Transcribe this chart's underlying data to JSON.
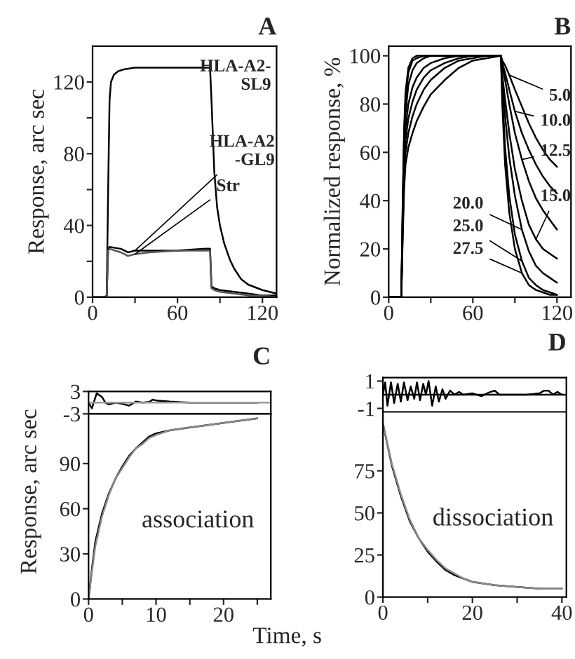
{
  "chart_data": [
    {
      "type": "line",
      "title": "A",
      "ylabel": "Response, arc sec",
      "xlim": [
        0,
        130
      ],
      "xticks": [
        0,
        {
          "value": 30,
          "label": null
        },
        60,
        {
          "value": 90,
          "label": null
        },
        120
      ],
      "ylim": [
        0,
        140
      ],
      "yticks": [
        0,
        {
          "value": 20,
          "label": null
        },
        40,
        {
          "value": 60,
          "label": null
        },
        80,
        {
          "value": 100,
          "label": null
        },
        120
      ],
      "grid": false,
      "legend": false,
      "series": [
        {
          "color": "#000000",
          "x": [
            0,
            9,
            10,
            11,
            12,
            13,
            15,
            18,
            22,
            30,
            50,
            70,
            83,
            84,
            86,
            88,
            90,
            93,
            97,
            100,
            105,
            110,
            120,
            130
          ],
          "values": [
            0,
            0,
            1,
            60,
            110,
            120,
            124,
            126,
            127,
            128,
            128,
            128,
            128,
            110,
            70,
            50,
            40,
            30,
            21,
            16,
            10,
            7,
            4,
            2
          ]
        },
        {
          "color": "#000000",
          "x": [
            0,
            9,
            10,
            11,
            12,
            20,
            25,
            30,
            40,
            60,
            80,
            83,
            84,
            86,
            90,
            100,
            110,
            120,
            130
          ],
          "values": [
            0,
            0,
            1,
            27,
            28,
            27,
            25,
            26,
            26,
            26,
            27,
            27,
            6,
            5,
            4,
            3,
            2,
            1,
            1
          ]
        },
        {
          "color": "#555555",
          "x": [
            0,
            9,
            10,
            11,
            12,
            20,
            25,
            30,
            40,
            60,
            80,
            83,
            84,
            86,
            90,
            100,
            110,
            120,
            130
          ],
          "values": [
            0,
            0,
            1,
            26,
            27,
            25,
            23,
            24,
            25,
            26,
            26,
            26,
            5,
            4,
            3,
            2,
            1,
            1,
            0
          ]
        }
      ],
      "annotations": [
        {
          "text": "HLA-A2-\nSL9",
          "x": 84,
          "y": 110
        },
        {
          "text": "HLA-A2\n-GL9",
          "x": 30,
          "y": 26
        },
        {
          "text": "Str",
          "x": 30,
          "y": 24
        }
      ]
    },
    {
      "type": "line",
      "title": "B",
      "ylabel": "Normalized response, %",
      "xlim": [
        0,
        130
      ],
      "xticks": [
        0,
        {
          "value": 30,
          "label": null
        },
        60,
        {
          "value": 90,
          "label": null
        },
        120
      ],
      "ylim": [
        0,
        104
      ],
      "yticks": [
        0,
        20,
        40,
        60,
        80,
        100
      ],
      "grid": false,
      "legend": false,
      "x": [
        0,
        9,
        10,
        11,
        12,
        14,
        17,
        20,
        25,
        30,
        40,
        50,
        60,
        70,
        80,
        81,
        83,
        86,
        90,
        95,
        100,
        105,
        110,
        115,
        120
      ],
      "series": [
        {
          "color": "#000000",
          "values": [
            0,
            0,
            25,
            45,
            55,
            62,
            68,
            73,
            79,
            84,
            90,
            95,
            98,
            99,
            100,
            98,
            96,
            92,
            86,
            79,
            72,
            66,
            61,
            57,
            54
          ]
        },
        {
          "color": "#000000",
          "values": [
            0,
            0,
            28,
            50,
            60,
            68,
            75,
            80,
            86,
            90,
            95,
            98,
            99,
            100,
            100,
            97,
            93,
            86,
            77,
            68,
            61,
            55,
            50,
            46,
            43
          ]
        },
        {
          "color": "#000000",
          "values": [
            0,
            0,
            30,
            55,
            65,
            74,
            81,
            86,
            91,
            94,
            97,
            99,
            100,
            100,
            100,
            96,
            90,
            80,
            68,
            57,
            48,
            41,
            36,
            32,
            28
          ]
        },
        {
          "color": "#000000",
          "values": [
            0,
            0,
            33,
            58,
            70,
            80,
            87,
            91,
            95,
            97,
            99,
            100,
            100,
            100,
            100,
            92,
            82,
            68,
            53,
            40,
            30,
            24,
            20,
            18,
            16
          ]
        },
        {
          "color": "#000000",
          "values": [
            0,
            0,
            35,
            62,
            76,
            88,
            94,
            97,
            99,
            100,
            100,
            100,
            100,
            100,
            100,
            90,
            75,
            58,
            42,
            28,
            19,
            13,
            10,
            8,
            6
          ]
        },
        {
          "color": "#000000",
          "values": [
            0,
            0,
            38,
            67,
            82,
            93,
            98,
            99,
            100,
            100,
            100,
            100,
            100,
            100,
            100,
            85,
            62,
            42,
            26,
            15,
            8,
            5,
            3,
            2,
            1
          ]
        },
        {
          "color": "#000000",
          "values": [
            0,
            0,
            40,
            70,
            85,
            95,
            99,
            100,
            100,
            100,
            100,
            100,
            100,
            100,
            100,
            80,
            55,
            35,
            20,
            10,
            5,
            3,
            2,
            1,
            1
          ]
        }
      ],
      "annotations": [
        {
          "text": "5.0",
          "x": 86,
          "y": 92
        },
        {
          "text": "10.0",
          "x": 90,
          "y": 77
        },
        {
          "text": "12.5",
          "x": 95,
          "y": 57
        },
        {
          "text": "15.0",
          "x": 105,
          "y": 24
        },
        {
          "text": "20.0",
          "x": 95,
          "y": 28
        },
        {
          "text": "25.0",
          "x": 95,
          "y": 15
        },
        {
          "text": "27.5",
          "x": 95,
          "y": 10
        }
      ]
    },
    {
      "type": "line",
      "title": "C",
      "xlim": [
        0,
        27
      ],
      "ylim": [
        -3,
        3
      ],
      "yticks": [
        -3,
        3
      ],
      "tick_labels": "y",
      "grid": false,
      "legend": false,
      "ref_lines": [
        {
          "axis": "y",
          "value": 0,
          "color": "#999999"
        }
      ],
      "series": [
        {
          "color": "#000000",
          "x": [
            0,
            0.5,
            1.2,
            2,
            2.5,
            3,
            4,
            5,
            6,
            7,
            8,
            9,
            9.5,
            10,
            12,
            15,
            20,
            25
          ],
          "values": [
            0,
            -1.5,
            2.5,
            1.5,
            0,
            -0.5,
            0,
            -0.3,
            -0.8,
            0.3,
            0,
            0.2,
            0.8,
            0.6,
            0.3,
            0,
            0,
            0
          ]
        }
      ]
    },
    {
      "type": "line",
      "xlabel": "Time, s",
      "ylabel": "Response, arc sec",
      "xlim": [
        0,
        27
      ],
      "xticks": [
        0,
        {
          "value": 5,
          "label": null
        },
        10,
        {
          "value": 15,
          "label": null
        },
        20,
        {
          "value": 25,
          "label": null
        }
      ],
      "ylim": [
        0,
        123
      ],
      "yticks": [
        0,
        30,
        60,
        90
      ],
      "grid": false,
      "legend": false,
      "x": [
        0,
        0.5,
        1,
        2,
        3,
        4,
        5,
        6,
        7,
        8,
        9,
        10,
        12,
        15,
        20,
        25
      ],
      "series": [
        {
          "color": "#000000",
          "values": [
            0,
            20,
            38,
            57,
            70,
            80,
            88,
            95,
            100,
            104,
            108,
            110,
            112,
            114,
            117,
            120
          ]
        },
        {
          "color": "#888888",
          "values": [
            0,
            18,
            35,
            55,
            69,
            80,
            87,
            94,
            100,
            103,
            107,
            109,
            112,
            114,
            117,
            120
          ]
        }
      ],
      "annotations": [
        "association"
      ]
    },
    {
      "type": "line",
      "title": "D",
      "xlim": [
        0,
        41
      ],
      "ylim": [
        -1.3,
        1.25
      ],
      "yticks": [
        -1,
        1
      ],
      "tick_labels": "y",
      "grid": false,
      "legend": false,
      "ref_lines": [
        {
          "axis": "y",
          "value": 0,
          "color": "#000000"
        }
      ],
      "series": [
        {
          "color": "#000000",
          "x": [
            0,
            0.5,
            1,
            1.8,
            2.5,
            3.3,
            4,
            4.7,
            5.5,
            6.2,
            7,
            7.6,
            8.3,
            9,
            9.6,
            10.2,
            11,
            11.8,
            12.5,
            13.3,
            14,
            15,
            16,
            17,
            18,
            20,
            22,
            24,
            25,
            26,
            28,
            30,
            32,
            35,
            36,
            37,
            38,
            39,
            40
          ],
          "values": [
            0,
            0.9,
            -0.8,
            0.9,
            -0.6,
            0.8,
            -0.5,
            0.9,
            -0.4,
            0.6,
            -0.3,
            0.9,
            -0.4,
            0.8,
            0,
            1,
            -0.8,
            0.6,
            -0.5,
            0.4,
            -0.3,
            0.3,
            0,
            0.2,
            0,
            0.1,
            -0.1,
            0.2,
            0.3,
            0,
            0,
            0,
            0,
            0.1,
            0.3,
            0.3,
            0,
            0.2,
            0
          ]
        }
      ]
    },
    {
      "type": "line",
      "xlim": [
        0,
        41
      ],
      "xticks": [
        0,
        {
          "value": 10,
          "label": null
        },
        20,
        {
          "value": 30,
          "label": null
        },
        40
      ],
      "ylim": [
        0,
        110
      ],
      "yticks": [
        0,
        25,
        50,
        75
      ],
      "grid": false,
      "legend": false,
      "x": [
        0,
        2,
        4,
        6,
        8,
        10,
        12,
        14,
        16,
        18,
        20,
        25,
        30,
        35,
        40
      ],
      "series": [
        {
          "color": "#000000",
          "values": [
            103,
            78,
            60,
            45,
            35,
            27,
            21,
            16,
            13,
            11,
            9,
            7,
            6,
            5,
            5
          ]
        },
        {
          "color": "#888888",
          "values": [
            103,
            79,
            61,
            46,
            35,
            28,
            22,
            17,
            14,
            11,
            9,
            7,
            6,
            5,
            5
          ]
        }
      ],
      "annotations": [
        "dissociation"
      ]
    }
  ]
}
